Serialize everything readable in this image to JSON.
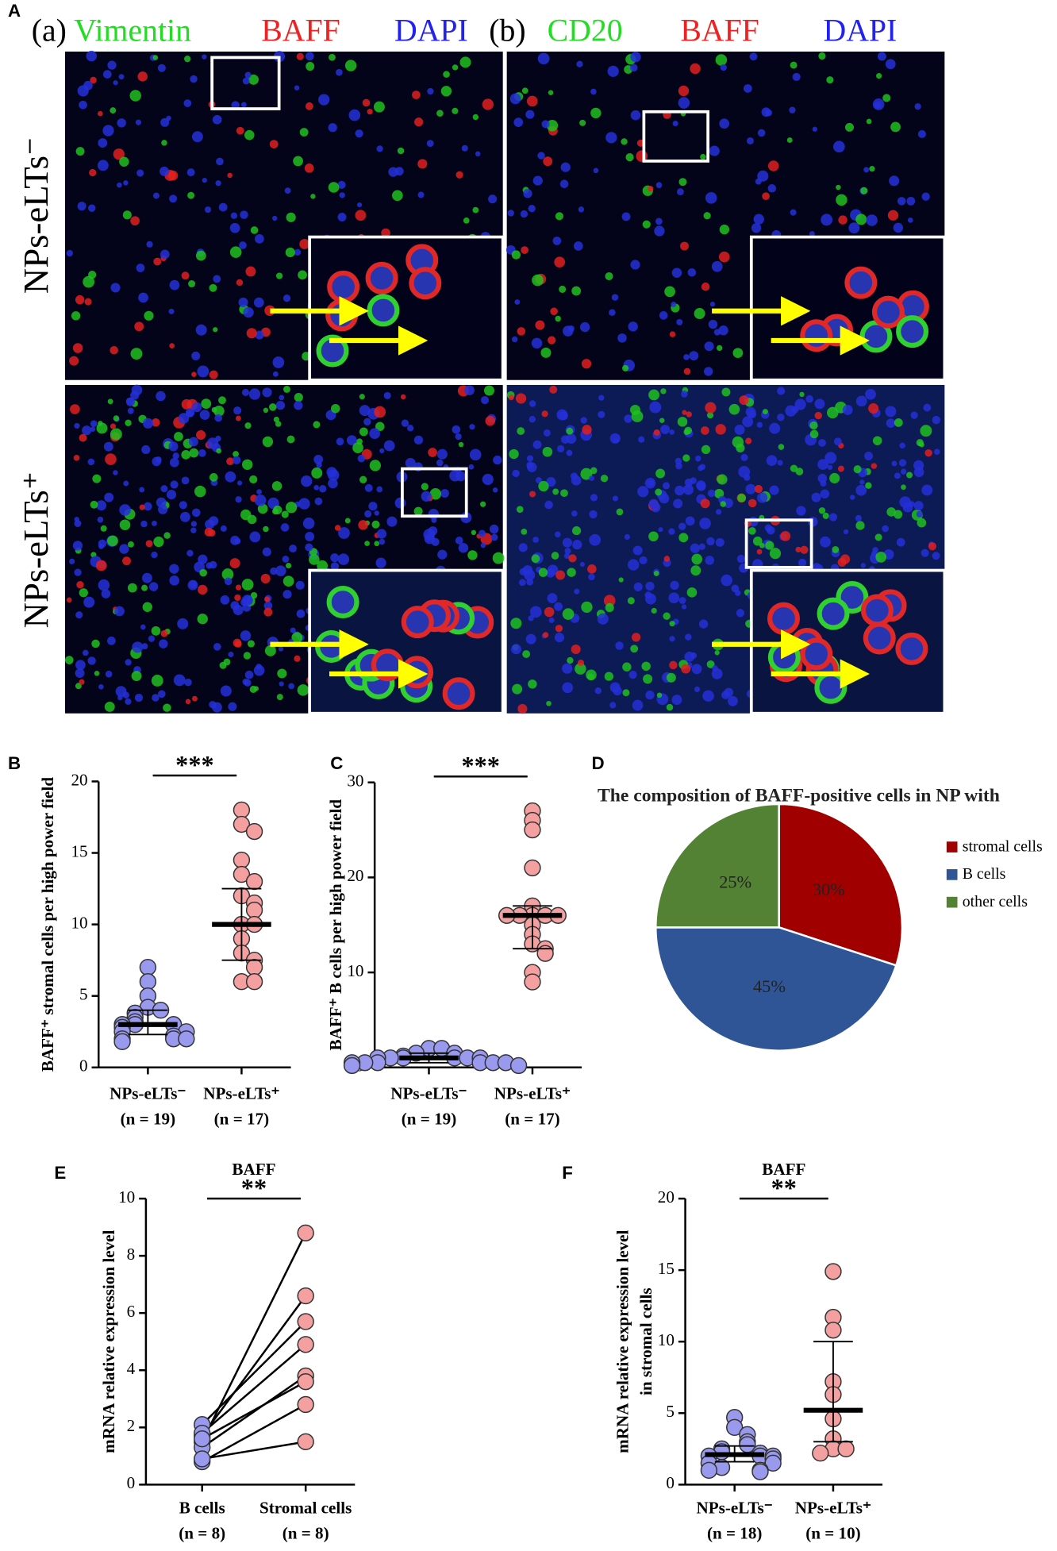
{
  "panel_a": {
    "label": "A",
    "columns": [
      {
        "label": "(a)",
        "stains": [
          "Vimentin",
          "BAFF",
          "DAPI"
        ]
      },
      {
        "label": "(b)",
        "stains": [
          "CD20",
          "BAFF",
          "DAPI"
        ]
      }
    ],
    "stain_colors": [
      "#22dd22",
      "#ee2222",
      "#2222ee"
    ],
    "rows": [
      "NPs-eLTs⁻",
      "NPs-eLTs⁺"
    ]
  },
  "chart_data": [
    {
      "type": "dotplot",
      "panel": "B",
      "ylabel": "BAFF⁺ stromal cells per high power field",
      "significance": "***",
      "categories": [
        "NPs-eLTs⁻",
        "NPs-eLTs⁺"
      ],
      "n_labels": [
        "(n = 19)",
        "(n = 17)"
      ],
      "groups": [
        {
          "color": "#9999ee",
          "values": [
            7,
            6,
            5,
            4.2,
            4,
            3.8,
            3.5,
            3.2,
            3,
            3,
            3,
            2.8,
            2.5,
            2.5,
            2.2,
            2,
            2,
            2,
            1.8
          ]
        },
        {
          "color": "#f4a0a0",
          "values": [
            18,
            17,
            16.5,
            14.5,
            13.5,
            13,
            12,
            11.5,
            11,
            10,
            10,
            9,
            8,
            7.5,
            7,
            6,
            6
          ]
        }
      ],
      "center": [
        3,
        10
      ],
      "lower": [
        2.3,
        7.5
      ],
      "upper": [
        4,
        12.5
      ],
      "ylim": [
        0,
        20
      ],
      "yticks": [
        0,
        5,
        10,
        15,
        20
      ]
    },
    {
      "type": "dotplot",
      "panel": "C",
      "ylabel": "BAFF⁺ B cells per high power field",
      "significance": "***",
      "categories": [
        "NPs-eLTs⁻",
        "NPs-eLTs⁺"
      ],
      "n_labels": [
        "(n = 19)",
        "(n = 17)"
      ],
      "groups": [
        {
          "color": "#9999ee",
          "values": [
            2,
            2,
            1.5,
            1.5,
            1.2,
            1,
            1,
            1,
            1,
            1,
            1,
            0.5,
            0.5,
            0.5,
            0.5,
            0.5,
            0.5,
            0.2,
            0.2
          ]
        },
        {
          "color": "#f4a0a0",
          "values": [
            27,
            26,
            25,
            21,
            17,
            16,
            16,
            16,
            16,
            16,
            15,
            14,
            13,
            12.5,
            12,
            10,
            9
          ]
        }
      ],
      "center": [
        1,
        16
      ],
      "lower": [
        0.5,
        12.5
      ],
      "upper": [
        1.5,
        17
      ],
      "ylim": [
        0,
        30
      ],
      "yticks": [
        0,
        10,
        20,
        30
      ]
    },
    {
      "type": "pie",
      "panel": "D",
      "title": "The composition of BAFF-positive cells in NP with eLTs",
      "labels": [
        "stromal cells",
        "B cells",
        "other cells"
      ],
      "values": [
        30,
        45,
        25
      ],
      "value_labels": [
        "30%",
        "45%",
        "25%"
      ],
      "colors": [
        "#a00000",
        "#2f5597",
        "#548235"
      ]
    },
    {
      "type": "paired",
      "panel": "E",
      "title": "BAFF",
      "ylabel": "mRNA relative expression level",
      "significance": "**",
      "categories": [
        "B cells",
        "Stromal cells"
      ],
      "n_labels": [
        "(n = 8)",
        "(n = 8)"
      ],
      "groups": [
        {
          "color": "#9999ee",
          "values": [
            1.5,
            1.7,
            2.1,
            1.8,
            1.3,
            1.6,
            0.8,
            0.9
          ]
        },
        {
          "color": "#f4a0a0",
          "values": [
            8.8,
            6.6,
            5.7,
            4.9,
            3.8,
            3.6,
            2.8,
            1.5
          ]
        }
      ],
      "ylim": [
        0,
        10
      ],
      "yticks": [
        0,
        2,
        4,
        6,
        8,
        10
      ]
    },
    {
      "type": "dotplot",
      "panel": "F",
      "title": "BAFF",
      "ylabel": [
        "mRNA relative expression level",
        "in stromal cells"
      ],
      "significance": "**",
      "categories": [
        "NPs-eLTs⁻",
        "NPs-eLTs⁺"
      ],
      "n_labels": [
        "(n = 18)",
        "(n = 10)"
      ],
      "groups": [
        {
          "color": "#9999ee",
          "values": [
            4.7,
            4,
            3.5,
            3,
            2.8,
            2.5,
            2.3,
            2.2,
            2,
            2,
            2,
            1.8,
            1.5,
            1.5,
            1.2,
            1,
            1,
            0.9
          ]
        },
        {
          "color": "#f4a0a0",
          "values": [
            14.9,
            11.7,
            10.8,
            7.2,
            6.3,
            4.6,
            3.2,
            2.5,
            2.5,
            2.2
          ]
        }
      ],
      "center": [
        2.1,
        5.2
      ],
      "lower": [
        1.6,
        3
      ],
      "upper": [
        2.7,
        10
      ],
      "ylim": [
        0,
        20
      ],
      "yticks": [
        0,
        5,
        10,
        15,
        20
      ]
    }
  ]
}
